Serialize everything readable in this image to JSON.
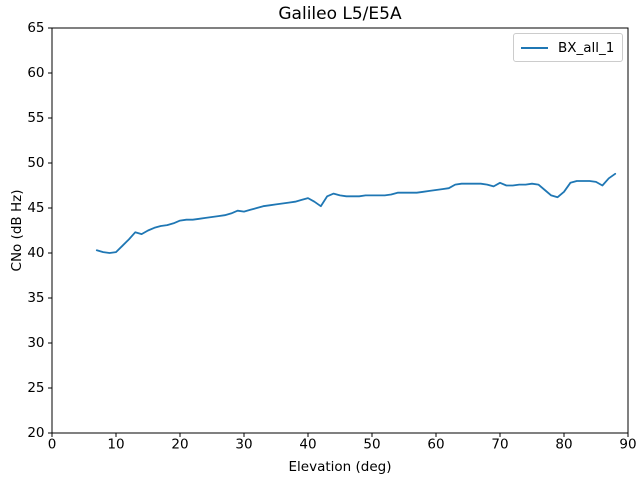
{
  "chart_data": {
    "type": "line",
    "title": "Galileo L5/E5A",
    "xlabel": "Elevation (deg)",
    "ylabel": "CNo (dB Hz)",
    "xlim": [
      0,
      90
    ],
    "ylim": [
      20,
      65
    ],
    "xticks": [
      0,
      10,
      20,
      30,
      40,
      50,
      60,
      70,
      80,
      90
    ],
    "yticks": [
      20,
      25,
      30,
      35,
      40,
      45,
      50,
      55,
      60,
      65
    ],
    "grid": false,
    "legend": {
      "position": "upper right",
      "entries": [
        {
          "name": "BX_all_1",
          "color": "#1f77b4"
        }
      ]
    },
    "series": [
      {
        "name": "BX_all_1",
        "color": "#1f77b4",
        "x": [
          7,
          8,
          9,
          10,
          11,
          12,
          13,
          14,
          15,
          16,
          17,
          18,
          19,
          20,
          21,
          22,
          23,
          24,
          25,
          26,
          27,
          28,
          29,
          30,
          31,
          32,
          33,
          34,
          35,
          36,
          37,
          38,
          39,
          40,
          41,
          42,
          43,
          44,
          45,
          46,
          47,
          48,
          49,
          50,
          51,
          52,
          53,
          54,
          55,
          56,
          57,
          58,
          59,
          60,
          61,
          62,
          63,
          64,
          65,
          66,
          67,
          68,
          69,
          70,
          71,
          72,
          73,
          74,
          75,
          76,
          77,
          78,
          79,
          80,
          81,
          82,
          83,
          84,
          85,
          86,
          87,
          88
        ],
        "y": [
          40.3,
          40.1,
          40.0,
          40.1,
          40.8,
          41.5,
          42.3,
          42.1,
          42.5,
          42.8,
          43.0,
          43.1,
          43.3,
          43.6,
          43.7,
          43.7,
          43.8,
          43.9,
          44.0,
          44.1,
          44.2,
          44.4,
          44.7,
          44.6,
          44.8,
          45.0,
          45.2,
          45.3,
          45.4,
          45.5,
          45.6,
          45.7,
          45.9,
          46.1,
          45.7,
          45.2,
          46.3,
          46.6,
          46.4,
          46.3,
          46.3,
          46.3,
          46.4,
          46.4,
          46.4,
          46.4,
          46.5,
          46.7,
          46.7,
          46.7,
          46.7,
          46.8,
          46.9,
          47.0,
          47.1,
          47.2,
          47.6,
          47.7,
          47.7,
          47.7,
          47.7,
          47.6,
          47.4,
          47.8,
          47.5,
          47.5,
          47.6,
          47.6,
          47.7,
          47.6,
          47.0,
          46.4,
          46.2,
          46.8,
          47.8,
          48.0,
          48.0,
          48.0,
          47.9,
          47.5,
          48.3,
          48.8
        ]
      }
    ]
  }
}
